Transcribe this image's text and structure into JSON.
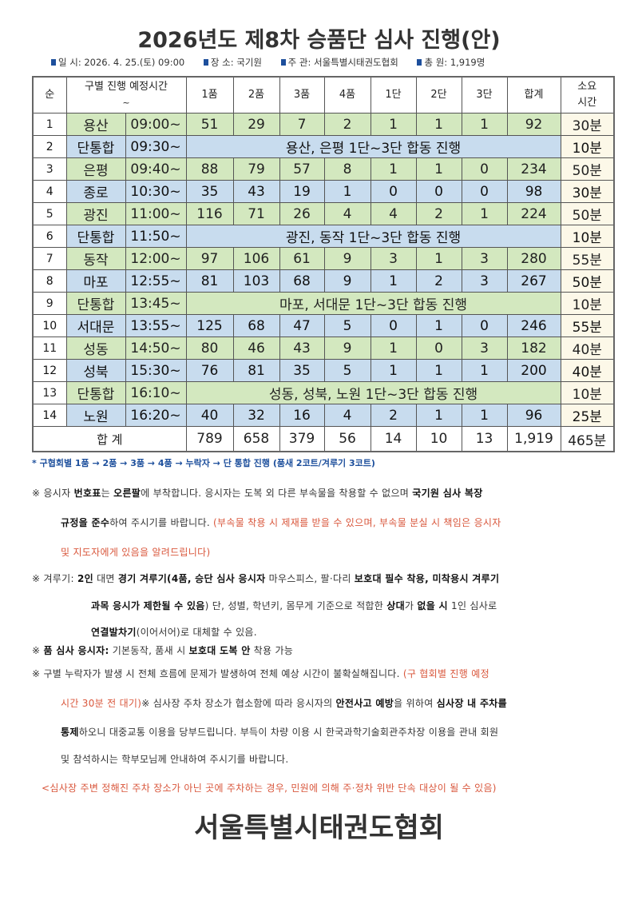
{
  "title": "2026년도 제8차 승품단 심사 진행(안)",
  "info": [
    {
      "label": "일 시:",
      "value": "2026. 4. 25.(토) 09:00"
    },
    {
      "label": "장 소:",
      "value": "국기원"
    },
    {
      "label": "주 관:",
      "value": "서울특별시태권도협회"
    },
    {
      "label": "총 원:",
      "value": "1,919명"
    }
  ],
  "colors": {
    "green_row": "#d3e8bf",
    "blue_row": "#c8dcee",
    "duration_col": "#fcf8e8",
    "accent_blue": "#1d4f9c",
    "note_red": "#d9573c"
  },
  "table": {
    "headers": {
      "no": "순",
      "group_time": "구별 진행 예정시간",
      "group_time_sub": "~",
      "cols": [
        "1품",
        "2품",
        "3품",
        "4품",
        "1단",
        "2단",
        "3단",
        "합계"
      ],
      "duration": "소요",
      "duration_sub": "시간"
    },
    "rows": [
      {
        "no": "1",
        "name": "용산",
        "time": "09:00~",
        "color": "g",
        "values": [
          "51",
          "29",
          "7",
          "2",
          "1",
          "1",
          "1",
          "92"
        ],
        "duration": "30분"
      },
      {
        "no": "2",
        "name": "단통합",
        "time": "09:30~",
        "color": "b",
        "merged": "용산, 은평 1단~3단 합동 진행",
        "duration": "10분"
      },
      {
        "no": "3",
        "name": "은평",
        "time": "09:40~",
        "color": "g",
        "values": [
          "88",
          "79",
          "57",
          "8",
          "1",
          "1",
          "0",
          "234"
        ],
        "duration": "50분"
      },
      {
        "no": "4",
        "name": "종로",
        "time": "10:30~",
        "color": "b",
        "values": [
          "35",
          "43",
          "19",
          "1",
          "0",
          "0",
          "0",
          "98"
        ],
        "duration": "30분"
      },
      {
        "no": "5",
        "name": "광진",
        "time": "11:00~",
        "color": "g",
        "values": [
          "116",
          "71",
          "26",
          "4",
          "4",
          "2",
          "1",
          "224"
        ],
        "duration": "50분"
      },
      {
        "no": "6",
        "name": "단통합",
        "time": "11:50~",
        "color": "b",
        "merged": "광진, 동작 1단~3단 합동 진행",
        "duration": "10분"
      },
      {
        "no": "7",
        "name": "동작",
        "time": "12:00~",
        "color": "g",
        "values": [
          "97",
          "106",
          "61",
          "9",
          "3",
          "1",
          "3",
          "280"
        ],
        "duration": "55분"
      },
      {
        "no": "8",
        "name": "마포",
        "time": "12:55~",
        "color": "b",
        "values": [
          "81",
          "103",
          "68",
          "9",
          "1",
          "2",
          "3",
          "267"
        ],
        "duration": "50분"
      },
      {
        "no": "9",
        "name": "단통합",
        "time": "13:45~",
        "color": "g",
        "merged": "마포, 서대문 1단~3단 합동 진행",
        "duration": "10분"
      },
      {
        "no": "10",
        "name": "서대문",
        "time": "13:55~",
        "color": "b",
        "values": [
          "125",
          "68",
          "47",
          "5",
          "0",
          "1",
          "0",
          "246"
        ],
        "duration": "55분"
      },
      {
        "no": "11",
        "name": "성동",
        "time": "14:50~",
        "color": "g",
        "values": [
          "80",
          "46",
          "43",
          "9",
          "1",
          "0",
          "3",
          "182"
        ],
        "duration": "40분"
      },
      {
        "no": "12",
        "name": "성북",
        "time": "15:30~",
        "color": "b",
        "values": [
          "76",
          "81",
          "35",
          "5",
          "1",
          "1",
          "1",
          "200"
        ],
        "duration": "40분"
      },
      {
        "no": "13",
        "name": "단통합",
        "time": "16:10~",
        "color": "g",
        "merged": "성동, 성북, 노원 1단~3단 합동 진행",
        "duration": "10분"
      },
      {
        "no": "14",
        "name": "노원",
        "time": "16:20~",
        "color": "b",
        "values": [
          "40",
          "32",
          "16",
          "4",
          "2",
          "1",
          "1",
          "96"
        ],
        "duration": "25분"
      }
    ],
    "total": {
      "label": "합 계",
      "values": [
        "789",
        "658",
        "379",
        "56",
        "14",
        "10",
        "13",
        "1,919"
      ],
      "duration": "465분"
    }
  },
  "footnote": "* 구협회별 1품 → 2품 → 3품 → 4품 → 누락자 → 단 통합 진행 (품새 2코트/겨루기 3코트)",
  "notes": [
    [
      {
        "t": "※ 응시자 ",
        "s": "n"
      },
      {
        "t": "번호표",
        "s": "b"
      },
      {
        "t": "는 ",
        "s": "n"
      },
      {
        "t": "오른팔",
        "s": "b"
      },
      {
        "t": "에 부착합니다. 응시자는 도복 외 다른 부속물을 착용할 수 없으며 ",
        "s": "n"
      },
      {
        "t": "국기원 심사 복장",
        "s": "b"
      }
    ],
    [
      {
        "t": "규정을 준수",
        "s": "b"
      },
      {
        "t": "하여 주시기를 바랍니다. ",
        "s": "n"
      },
      {
        "t": "(부속물 착용 시 제재를 받을 수 있으며, 부속물 분실 시 책임은 응시자",
        "s": "r"
      }
    ],
    [
      {
        "t": "및 지도자에게 있음을 알려드립니다)",
        "s": "r"
      }
    ],
    [
      {
        "t": "※ 겨루기: ",
        "s": "n"
      },
      {
        "t": "2인",
        "s": "b"
      },
      {
        "t": " 대면 ",
        "s": "n"
      },
      {
        "t": "경기 겨루기(4품, 승단 심사 응시자",
        "s": "b"
      },
      {
        "t": " 마우스피스, 팔·다리 ",
        "s": "n"
      },
      {
        "t": "보호대 필수 착용, 미착용시 겨루기",
        "s": "b"
      }
    ],
    [
      {
        "t": "과목 응시가 제한될 수 있음",
        "s": "b"
      },
      {
        "t": ") 단, 성별, 학년키, 몸무게 기준으로 적합한 ",
        "s": "n"
      },
      {
        "t": "상대",
        "s": "b"
      },
      {
        "t": "가 ",
        "s": "n"
      },
      {
        "t": "없을 시",
        "s": "b"
      },
      {
        "t": " 1인 심사로",
        "s": "n"
      }
    ],
    [
      {
        "t": "연결발차기",
        "s": "b"
      },
      {
        "t": "(이어서어)로 대체할 수 있음.",
        "s": "n"
      }
    ],
    [
      {
        "t": "※ ",
        "s": "n"
      },
      {
        "t": "품 심사 응시자:",
        "s": "b"
      },
      {
        "t": " 기본동작, 품새 시 ",
        "s": "n"
      },
      {
        "t": "보호대 도복 안",
        "s": "b"
      },
      {
        "t": " 착용 가능",
        "s": "n"
      }
    ],
    [
      {
        "t": "※ 구별 누락자가 발생 시 전체 흐름에 문제가 발생하여 전체 예상 시간이 불확실해집니다. ",
        "s": "n"
      },
      {
        "t": "(구 협회별 진행 예정",
        "s": "r"
      }
    ],
    [
      {
        "t": "시간 30분 전 대기)",
        "s": "r"
      },
      {
        "t": "※ 심사장 주차 장소가 협소함에 따라 응시자의 ",
        "s": "n"
      },
      {
        "t": "안전사고 예방",
        "s": "b"
      },
      {
        "t": "을 위하여 ",
        "s": "n"
      },
      {
        "t": "심사장 내 주차를",
        "s": "b"
      }
    ],
    [
      {
        "t": "통제",
        "s": "b"
      },
      {
        "t": "하오니 대중교통 이용을 당부드립니다. 부득이 차량 이용 시 한국과학기술회관주차장 이용을 관내 회원",
        "s": "n"
      }
    ],
    [
      {
        "t": "및 참석하시는 학부모님께 안내하여 주시기를 바랍니다.",
        "s": "n"
      }
    ],
    [
      {
        "t": "<심사장 주변 정해진 주차 장소가 아닌 곳에 주차하는 경우, 민원에 의해 주·정차 위반 단속 대상이 될 수 있음)",
        "s": "r"
      }
    ]
  ],
  "organization": "서울특별시태권도협회"
}
